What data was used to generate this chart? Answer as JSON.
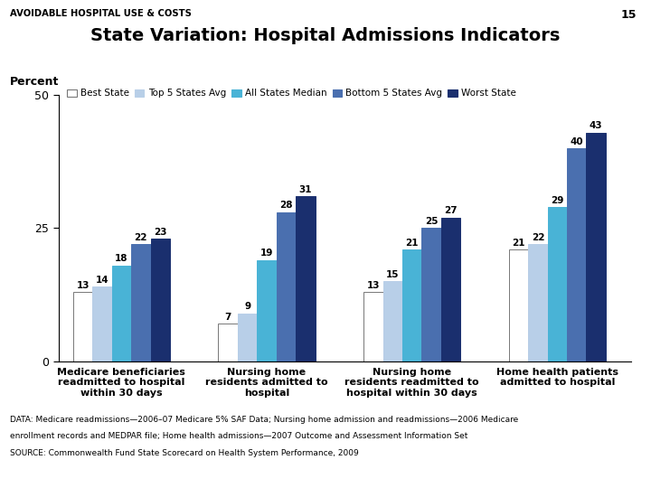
{
  "title": "State Variation: Hospital Admissions Indicators",
  "header": "AVOIDABLE HOSPITAL USE & COSTS",
  "page_num": "15",
  "ylabel": "Percent",
  "ylim": [
    0,
    50
  ],
  "yticks": [
    0,
    25,
    50
  ],
  "categories": [
    "Medicare beneficiaries\nreadmitted to hospital\nwithin 30 days",
    "Nursing home\nresidents admitted to\nhospital",
    "Nursing home\nresidents readmitted to\nhospital within 30 days",
    "Home health patients\nadmitted to hospital"
  ],
  "series_labels": [
    "Best State",
    "Top 5 States Avg",
    "All States Median",
    "Bottom 5 States Avg",
    "Worst State"
  ],
  "series_colors": [
    "#ffffff",
    "#b8cfe8",
    "#49b3d6",
    "#4a6faf",
    "#1a2f6e"
  ],
  "series_edgecolors": [
    "#777777",
    "#b8cfe8",
    "#49b3d6",
    "#4a6faf",
    "#1a2f6e"
  ],
  "data": [
    [
      13,
      14,
      18,
      22,
      23
    ],
    [
      7,
      9,
      19,
      28,
      31
    ],
    [
      13,
      15,
      21,
      25,
      27
    ],
    [
      21,
      22,
      29,
      40,
      43
    ]
  ],
  "footnote1": "DATA: Medicare readmissions—2006–07 Medicare 5% SAF Data; Nursing home admission and readmissions—2006 Medicare",
  "footnote2": "enrollment records and MEDPAR file; Home health admissions—2007 Outcome and Assessment Information Set",
  "footnote3": "SOURCE: Commonwealth Fund State Scorecard on Health System Performance, 2009"
}
